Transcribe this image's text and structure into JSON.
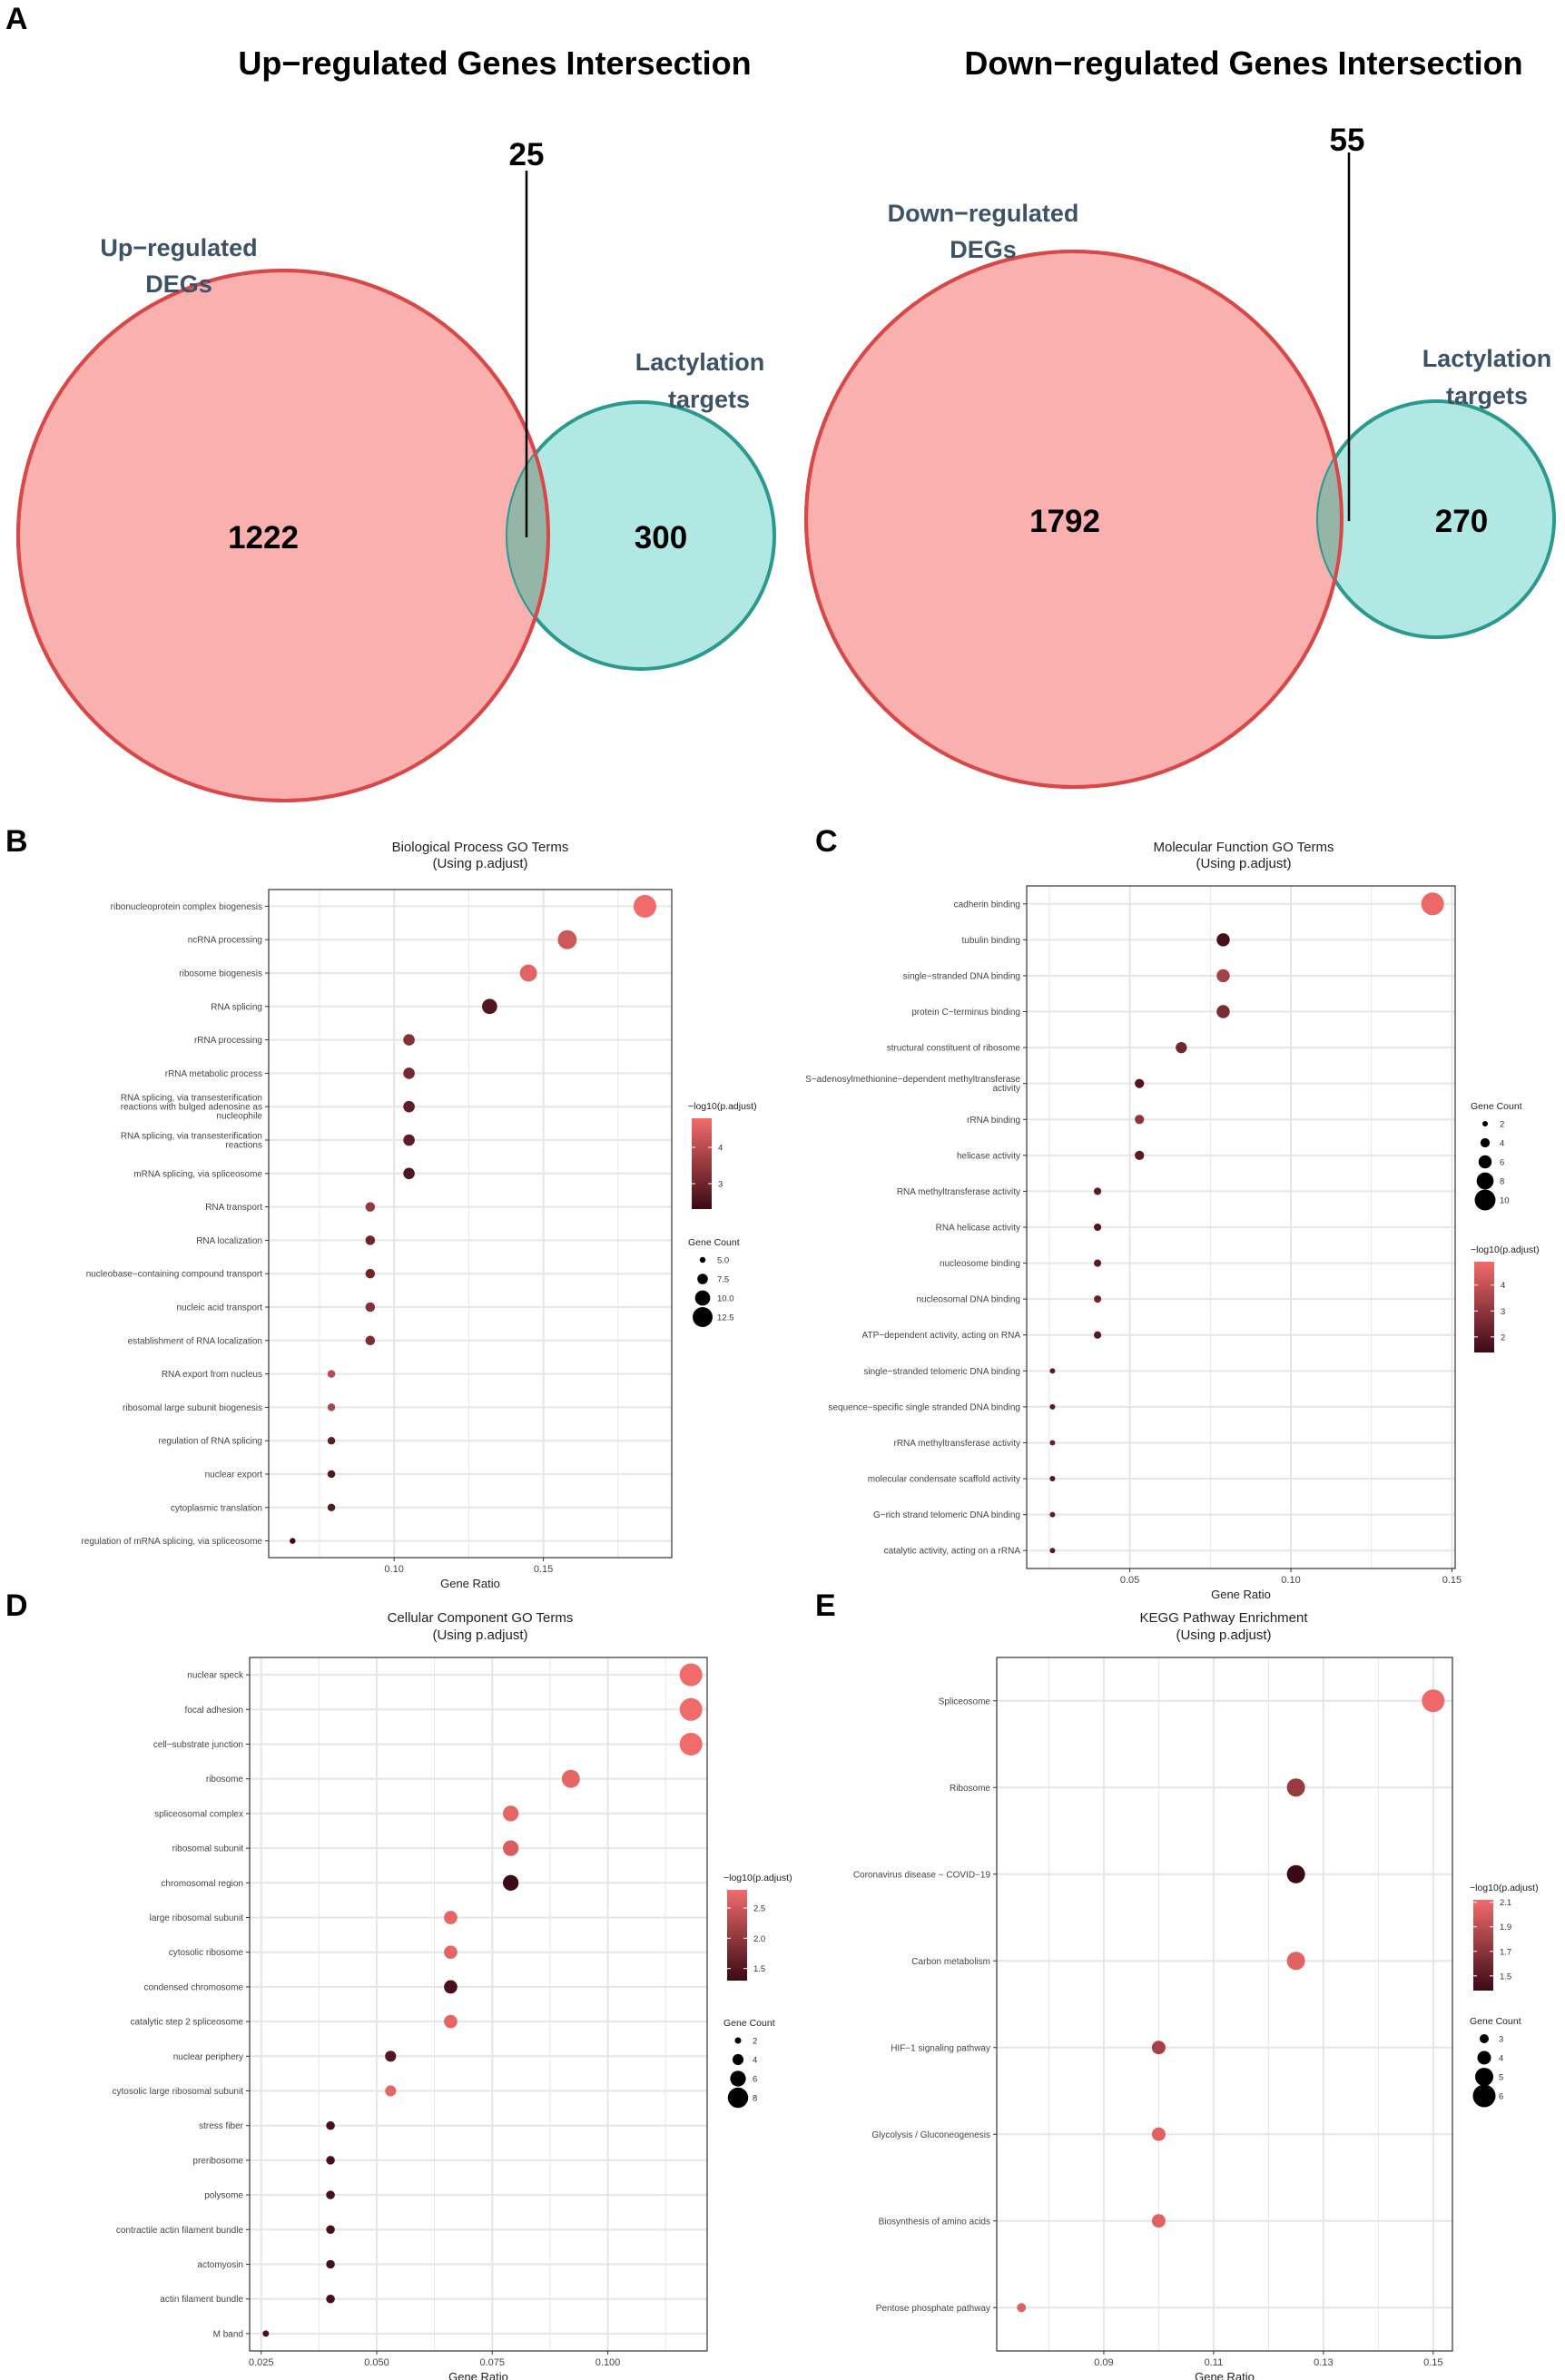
{
  "colors": {
    "venn_red_fill": "#fbb0b0",
    "venn_red_edge": "#d94848",
    "venn_teal_fill": "#a9e6e0",
    "venn_teal_edge": "#2a9a8e",
    "overlap_fill": "#95b5a8",
    "dot_low": "#3b0a16",
    "dot_high": "#f26b6b",
    "grid": "#e6e6e6"
  },
  "panel_labels": [
    "A",
    "B",
    "C",
    "D",
    "E"
  ],
  "venn": [
    {
      "title": "Up−regulated Genes Intersection",
      "left_label": [
        "Up−regulated",
        "DEGs"
      ],
      "right_label": [
        "Lactylation",
        "targets"
      ],
      "left_only": "1222",
      "overlap": "25",
      "right_only": "300"
    },
    {
      "title": "Down−regulated Genes Intersection",
      "left_label": [
        "Down−regulated",
        "DEGs"
      ],
      "right_label": [
        "Lactylation",
        "targets"
      ],
      "left_only": "1792",
      "overlap": "55",
      "right_only": "270"
    }
  ],
  "chart_data": [
    {
      "type": "scatter",
      "panel": "B",
      "title": "Biological Process GO Terms",
      "subtitle": "(Using p.adjust)",
      "xlabel": "Gene Ratio",
      "xlim": [
        0.058,
        0.193
      ],
      "xticks": [
        0.1,
        0.15
      ],
      "xtick_labels": [
        "0.10",
        "0.15"
      ],
      "categories": [
        "ribonucleoprotein complex biogenesis",
        "ncRNA processing",
        "ribosome biogenesis",
        "RNA splicing",
        "rRNA processing",
        "rRNA metabolic process",
        "RNA splicing, via transesterification reactions with bulged adenosine as nucleophile",
        "RNA splicing, via transesterification reactions",
        "mRNA splicing, via spliceosome",
        "RNA transport",
        "RNA localization",
        "nucleobase−containing compound transport",
        "nucleic acid transport",
        "establishment of RNA localization",
        "RNA export from nucleus",
        "ribosomal large subunit biogenesis",
        "regulation of RNA splicing",
        "nuclear export",
        "cytoplasmic translation",
        "regulation of mRNA splicing, via spliceosome"
      ],
      "x": [
        0.184,
        0.158,
        0.145,
        0.132,
        0.105,
        0.105,
        0.105,
        0.105,
        0.105,
        0.092,
        0.092,
        0.092,
        0.092,
        0.092,
        0.079,
        0.079,
        0.079,
        0.079,
        0.079,
        0.066
      ],
      "gene_count": [
        14,
        12,
        11,
        10,
        8,
        8,
        8,
        8,
        8,
        7,
        7,
        7,
        7,
        7,
        6,
        6,
        6,
        6,
        6,
        5
      ],
      "neg_log10_padj": [
        4.8,
        4.3,
        4.6,
        2.6,
        3.3,
        3.1,
        2.8,
        2.8,
        2.6,
        3.5,
        3.0,
        3.0,
        3.3,
        3.2,
        4.0,
        3.8,
        2.8,
        2.6,
        2.7,
        2.3
      ],
      "color_range": [
        2.3,
        4.8
      ],
      "color_legend_title": "−log10(p.adjust)",
      "color_legend_ticks": [
        3,
        4
      ],
      "color_legend_labels": [
        "3",
        "4"
      ],
      "size_legend_title": "Gene Count",
      "size_legend_values": [
        5,
        7.5,
        10,
        12.5
      ],
      "size_legend_labels": [
        "5.0",
        "7.5",
        "10.0",
        "12.5"
      ]
    },
    {
      "type": "scatter",
      "panel": "C",
      "title": "Molecular Function GO Terms",
      "subtitle": "(Using p.adjust)",
      "xlabel": "Gene Ratio",
      "xlim": [
        0.018,
        0.151
      ],
      "xticks": [
        0.05,
        0.1,
        0.15
      ],
      "xtick_labels": [
        "0.05",
        "0.10",
        "0.15"
      ],
      "categories": [
        "cadherin binding",
        "tubulin binding",
        "single−stranded DNA binding",
        "protein C−terminus binding",
        "structural constituent of ribosome",
        "S−adenosylmethionine−dependent methyltransferase activity",
        "rRNA binding",
        "helicase activity",
        "RNA methyltransferase activity",
        "RNA helicase activity",
        "nucleosome binding",
        "nucleosomal DNA binding",
        "ATP−dependent activity, acting on RNA",
        "single−stranded telomeric DNA binding",
        "sequence−specific single stranded DNA binding",
        "rRNA methyltransferase activity",
        "molecular condensate scaffold activity",
        "G−rich strand telomeric DNA binding",
        "catalytic activity, acting on a rRNA"
      ],
      "x": [
        0.144,
        0.079,
        0.079,
        0.079,
        0.066,
        0.053,
        0.053,
        0.053,
        0.04,
        0.04,
        0.04,
        0.04,
        0.04,
        0.026,
        0.026,
        0.026,
        0.026,
        0.026,
        0.026
      ],
      "gene_count": [
        11,
        6,
        6,
        6,
        5,
        4,
        4,
        4,
        3,
        3,
        3,
        3,
        3,
        2,
        2,
        2,
        2,
        2,
        2
      ],
      "neg_log10_padj": [
        4.8,
        1.6,
        3.4,
        2.6,
        2.4,
        1.8,
        3.0,
        2.0,
        2.0,
        1.8,
        2.0,
        2.3,
        1.9,
        1.9,
        2.0,
        2.2,
        1.8,
        2.2,
        2.0
      ],
      "color_range": [
        1.4,
        4.9
      ],
      "size_legend_title": "Gene Count",
      "size_legend_values": [
        2,
        4,
        6,
        8,
        10
      ],
      "size_legend_labels": [
        "2",
        "4",
        "6",
        "8",
        "10"
      ],
      "color_legend_title": "−log10(p.adjust)",
      "color_legend_ticks": [
        2,
        3,
        4
      ],
      "color_legend_labels": [
        "2",
        "3",
        "4"
      ]
    },
    {
      "type": "scatter",
      "panel": "D",
      "title": "Cellular Component GO Terms",
      "subtitle": "(Using p.adjust)",
      "xlabel": "Gene Ratio",
      "xlim": [
        0.0225,
        0.1215
      ],
      "xticks": [
        0.025,
        0.05,
        0.075,
        0.1
      ],
      "xtick_labels": [
        "0.025",
        "0.050",
        "0.075",
        "0.100"
      ],
      "categories": [
        "nuclear speck",
        "focal adhesion",
        "cell−substrate junction",
        "ribosome",
        "spliceosomal complex",
        "ribosomal subunit",
        "chromosomal region",
        "large ribosomal subunit",
        "cytosolic ribosome",
        "condensed chromosome",
        "catalytic step 2 spliceosome",
        "nuclear periphery",
        "cytosolic large ribosomal subunit",
        "stress fiber",
        "preribosome",
        "polysome",
        "contractile actin filament bundle",
        "actomyosin",
        "actin filament bundle",
        "M band"
      ],
      "x": [
        0.118,
        0.118,
        0.118,
        0.092,
        0.079,
        0.079,
        0.079,
        0.066,
        0.066,
        0.066,
        0.066,
        0.053,
        0.053,
        0.04,
        0.04,
        0.04,
        0.04,
        0.04,
        0.04,
        0.026
      ],
      "gene_count": [
        9,
        9,
        9,
        7,
        6,
        6,
        6,
        5,
        5,
        5,
        5,
        4,
        4,
        3,
        3,
        3,
        3,
        3,
        3,
        2
      ],
      "neg_log10_padj": [
        2.8,
        2.8,
        2.8,
        2.7,
        2.7,
        2.6,
        1.3,
        2.7,
        2.7,
        1.4,
        2.7,
        1.5,
        2.7,
        1.4,
        1.4,
        1.4,
        1.4,
        1.4,
        1.4,
        1.4
      ],
      "color_range": [
        1.3,
        2.8
      ],
      "color_legend_title": "−log10(p.adjust)",
      "color_legend_ticks": [
        1.5,
        2.0,
        2.5
      ],
      "color_legend_labels": [
        "1.5",
        "2.0",
        "2.5"
      ],
      "size_legend_title": "Gene Count",
      "size_legend_values": [
        2,
        4,
        6,
        8
      ],
      "size_legend_labels": [
        "2",
        "4",
        "6",
        "8"
      ]
    },
    {
      "type": "scatter",
      "panel": "E",
      "title": "KEGG Pathway Enrichment",
      "subtitle": "(Using p.adjust)",
      "xlabel": "Gene Ratio",
      "xlim": [
        0.0705,
        0.1535
      ],
      "xticks": [
        0.09,
        0.11,
        0.13,
        0.15
      ],
      "xtick_labels": [
        "0.09",
        "0.11",
        "0.13",
        "0.15"
      ],
      "categories": [
        "Spliceosome",
        "Ribosome",
        "Coronavirus disease − COVID−19",
        "Carbon metabolism",
        "HIF−1 signaling pathway",
        "Glycolysis / Gluconeogenesis",
        "Biosynthesis of amino acids",
        "Pentose phosphate pathway"
      ],
      "x": [
        0.15,
        0.125,
        0.125,
        0.125,
        0.1,
        0.1,
        0.1,
        0.075
      ],
      "gene_count": [
        6,
        5,
        5,
        5,
        4,
        4,
        4,
        3
      ],
      "neg_log10_padj": [
        2.1,
        1.75,
        1.38,
        2.05,
        1.8,
        2.05,
        2.05,
        2.05
      ],
      "color_range": [
        1.38,
        2.12
      ],
      "color_legend_title": "−log10(p.adjust)",
      "color_legend_ticks": [
        1.5,
        1.7,
        1.9,
        2.1
      ],
      "color_legend_labels": [
        "1.5",
        "1.7",
        "1.9",
        "2.1"
      ],
      "size_legend_title": "Gene Count",
      "size_legend_values": [
        3,
        4,
        5,
        6
      ],
      "size_legend_labels": [
        "3",
        "4",
        "5",
        "6"
      ]
    }
  ]
}
